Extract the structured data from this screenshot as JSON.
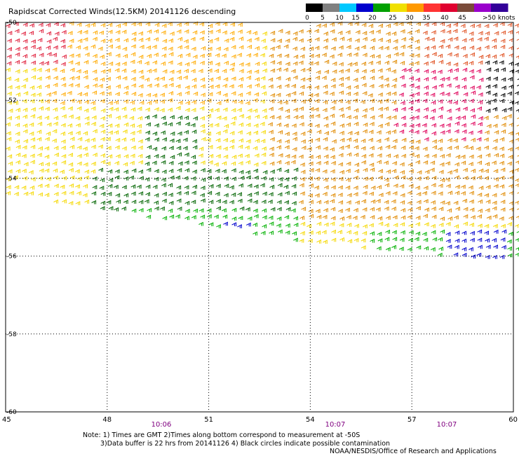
{
  "title": "Rapidscat Corrected Winds(12.5KM) 20141126 descending",
  "legend": {
    "labels": [
      "0",
      "5",
      "10",
      "15",
      "20",
      "25",
      "30",
      "35",
      "40",
      "45",
      ">50 knots"
    ],
    "colors": [
      "#000000",
      "#808080",
      "#00c8ff",
      "#0000cd",
      "#00a000",
      "#f0e000",
      "#ff9900",
      "#ff3333",
      "#e00030",
      "#7a4b3a",
      "#9900cc",
      "#330099"
    ]
  },
  "map": {
    "lat_labels": [
      "-50",
      "-52",
      "-54",
      "-56",
      "-58",
      "-60"
    ],
    "lon_labels": [
      "45",
      "48",
      "51",
      "54",
      "57",
      "60"
    ],
    "time_labels": [
      "10:06",
      "10:07",
      "10:07"
    ],
    "time_label_color": "#800080"
  },
  "notes": {
    "line1": "Note: 1) Times are GMT 2)Times along bottom correspond to measurement at -50S",
    "line2": "3)Data buffer is 22 hrs from 20141126 4) Black circles indicate possible contamination",
    "credit": "NOAA/NESDIS/Office of Research and Applications"
  }
}
